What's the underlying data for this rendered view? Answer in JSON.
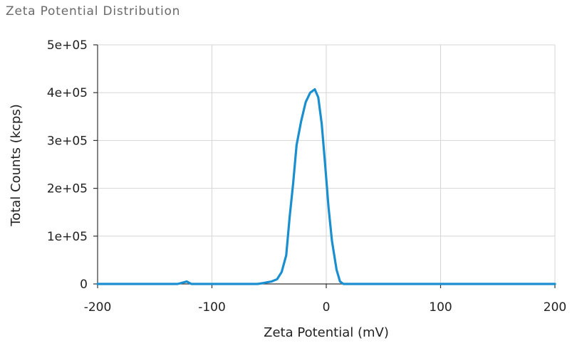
{
  "chart_data": {
    "type": "line",
    "title": "Zeta Potential Distribution",
    "xlabel": "Zeta Potential (mV)",
    "ylabel": "Total Counts (kcps)",
    "xlim": [
      -200,
      200
    ],
    "ylim": [
      0,
      500000
    ],
    "x_ticks": [
      -200,
      -100,
      0,
      100,
      200
    ],
    "x_tick_labels": [
      "-200",
      "-100",
      "0",
      "100",
      "200"
    ],
    "y_ticks": [
      0,
      100000,
      200000,
      300000,
      400000,
      500000
    ],
    "y_tick_labels": [
      "0",
      "1e+05",
      "2e+05",
      "3e+05",
      "4e+05",
      "5e+05"
    ],
    "grid": true,
    "legend": "none",
    "series": [
      {
        "color": "#1a8fd0",
        "x": [
          -200,
          -130,
          -122,
          -118,
          -112,
          -60,
          -55,
          -48,
          -43,
          -39,
          -35,
          -32,
          -29,
          -26,
          -22,
          -18,
          -14,
          -10,
          -7,
          -4,
          -1,
          2,
          5,
          9,
          12,
          15,
          30,
          60,
          100,
          150,
          200
        ],
        "y": [
          0,
          0,
          5000,
          0,
          0,
          0,
          2000,
          5000,
          10000,
          25000,
          60000,
          140000,
          210000,
          290000,
          340000,
          380000,
          400000,
          407000,
          390000,
          335000,
          250000,
          160000,
          90000,
          30000,
          5000,
          0,
          0,
          0,
          0,
          0,
          0
        ]
      }
    ]
  }
}
